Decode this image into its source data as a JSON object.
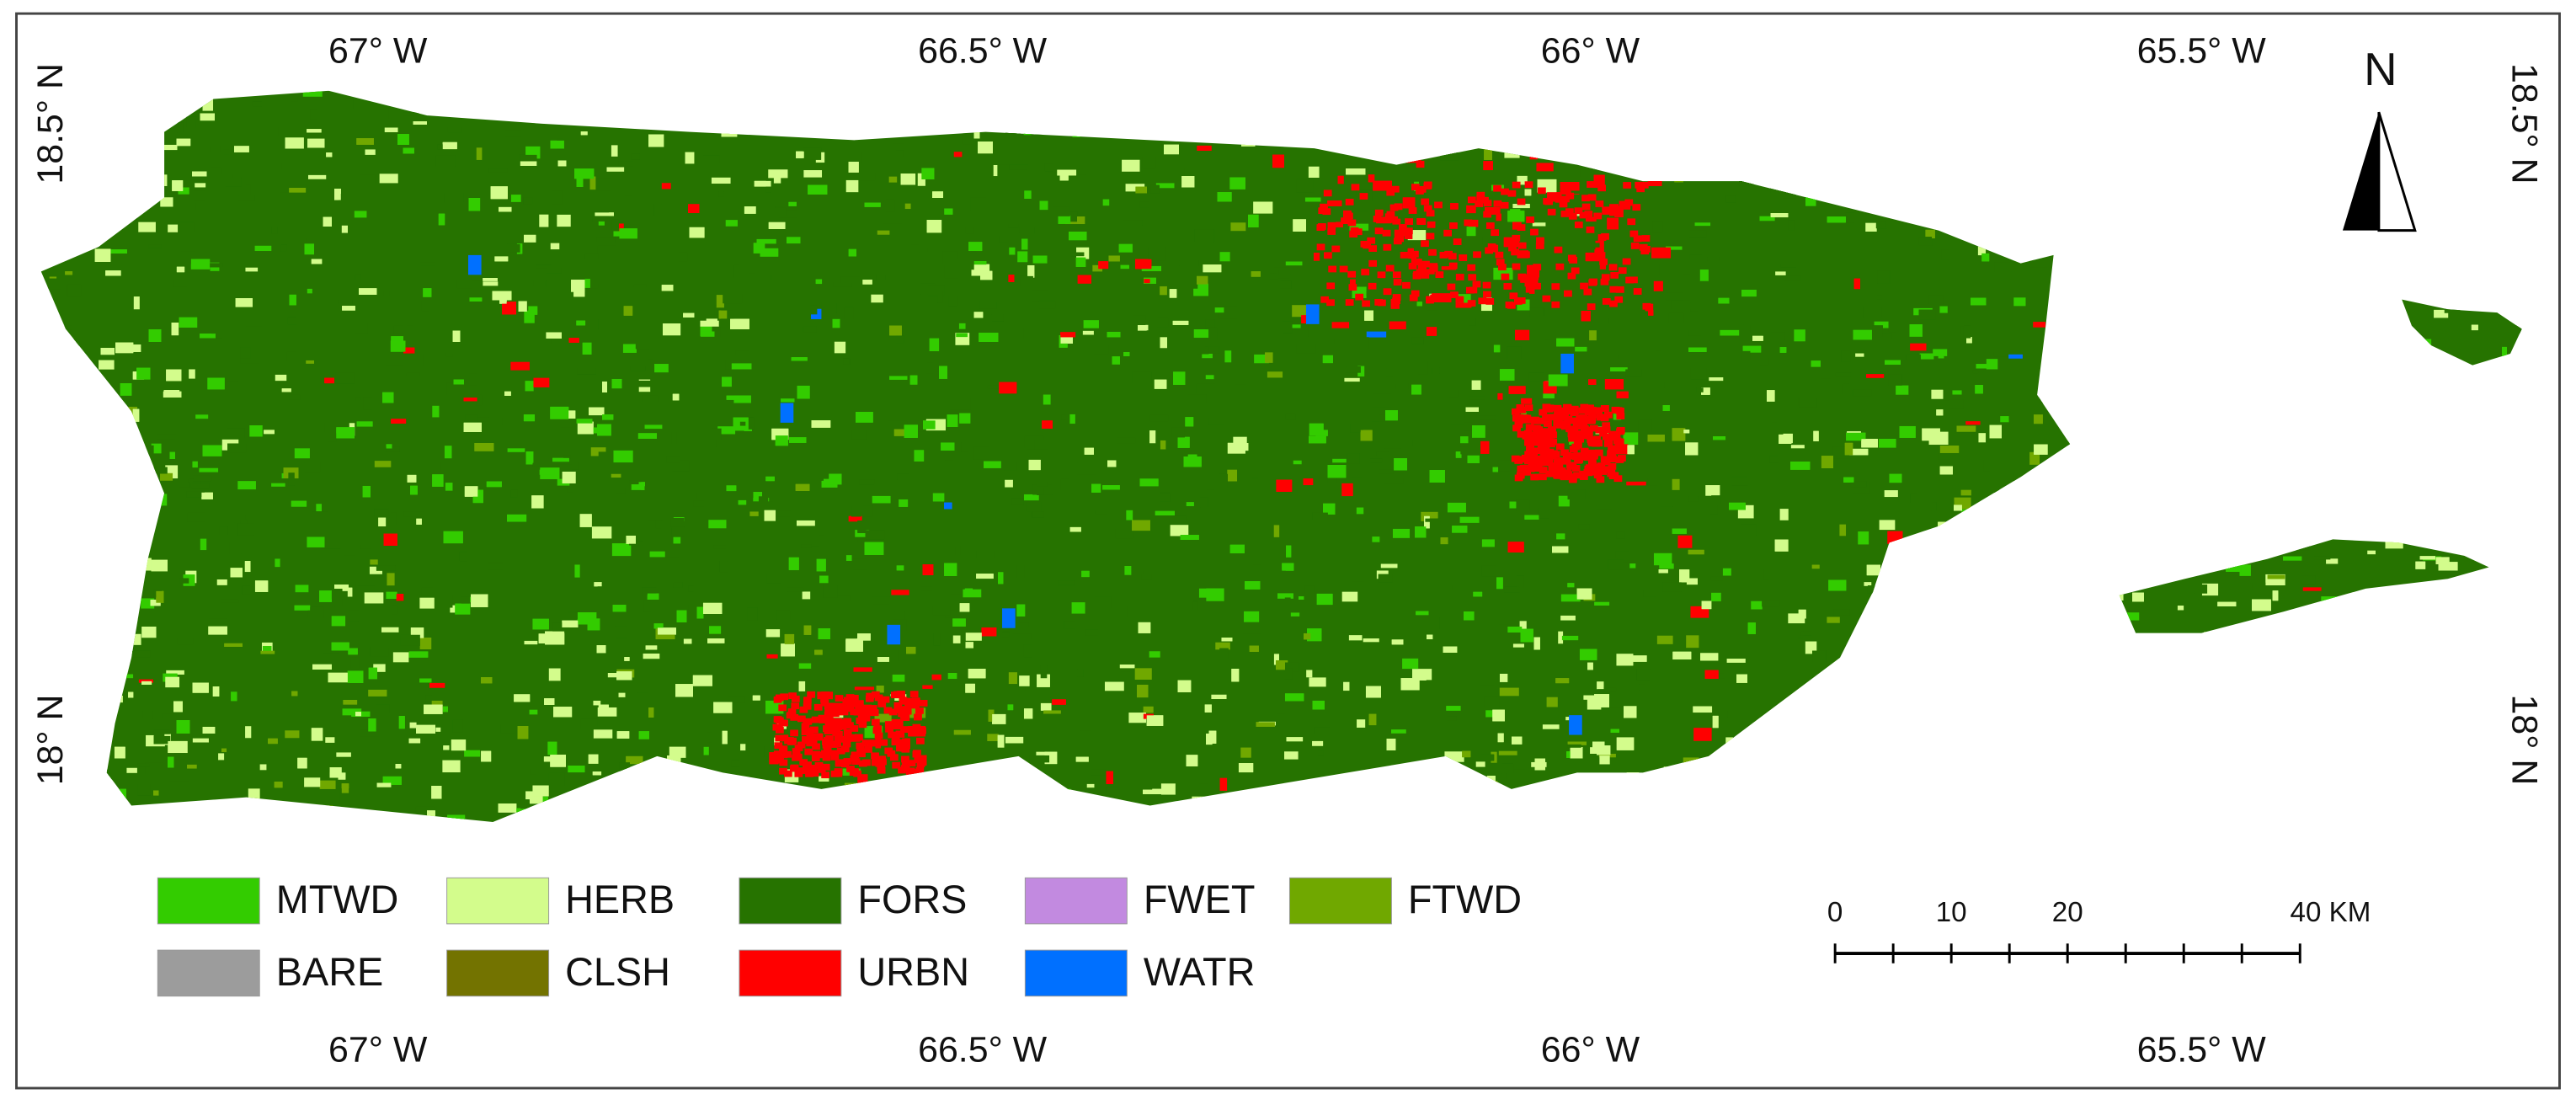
{
  "map": {
    "longitude_labels_top": [
      "67° W",
      "66.5° W",
      "66° W",
      "65.5° W"
    ],
    "longitude_labels_bottom": [
      "67° W",
      "66.5° W",
      "66° W",
      "65.5° W"
    ],
    "latitude_labels_left": [
      "18.5° N",
      "18° N"
    ],
    "latitude_labels_right": [
      "18.5° N",
      "18° N"
    ],
    "north": "N",
    "legend": [
      {
        "label": "MTWD",
        "color": "#33cc00"
      },
      {
        "label": "HERB",
        "color": "#d3fc8c"
      },
      {
        "label": "FORS",
        "color": "#267300"
      },
      {
        "label": "FWET",
        "color": "#c28ae0"
      },
      {
        "label": "FTWD",
        "color": "#70a800"
      },
      {
        "label": "BARE",
        "color": "#9c9c9c"
      },
      {
        "label": "CLSH",
        "color": "#737300"
      },
      {
        "label": "URBN",
        "color": "#ff0000"
      },
      {
        "label": "WATR",
        "color": "#0070ff"
      }
    ],
    "scale_bar": {
      "ticks": [
        0,
        5,
        10,
        15,
        20,
        25,
        30,
        35,
        40
      ],
      "labels": [
        0,
        10,
        20,
        {
          "value": 40,
          "label": "40 KM"
        }
      ]
    }
  }
}
